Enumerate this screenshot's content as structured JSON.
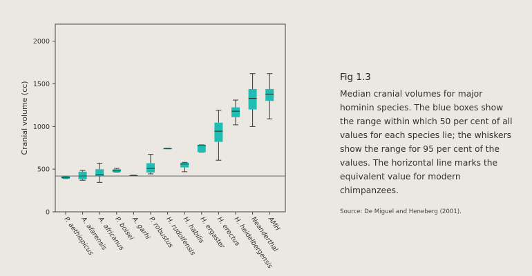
{
  "chart_data": {
    "type": "box",
    "ylabel": "Cranial volume (cc)",
    "ylim": [
      0,
      2200
    ],
    "yticks": [
      0,
      500,
      1000,
      1500,
      2000
    ],
    "reference_line": 420,
    "colors": {
      "box": "#20bdb2",
      "median": "#1f3b38",
      "whisker": "#333333",
      "axis": "#444444"
    },
    "categories": [
      "P. aethiopicus",
      "A. afarensis",
      "A. africanus",
      "P. boisei",
      "A. garhi",
      "P. robustus",
      "H. rudolfensis",
      "H. habilis",
      "H. ergaster",
      "H. erectus",
      "H. heidelbergensis",
      "Neanderthal",
      "AMH"
    ],
    "boxes": [
      {
        "whisker_low": 390,
        "q1": 390,
        "median": 400,
        "q3": 415,
        "whisker_high": 415
      },
      {
        "whisker_low": 370,
        "q1": 380,
        "median": 420,
        "q3": 470,
        "whisker_high": 485
      },
      {
        "whisker_low": 345,
        "q1": 420,
        "median": 435,
        "q3": 500,
        "whisker_high": 570
      },
      {
        "whisker_low": 465,
        "q1": 465,
        "median": 480,
        "q3": 500,
        "whisker_high": 510
      },
      {
        "whisker_low": 425,
        "q1": 425,
        "median": 425,
        "q3": 430,
        "whisker_high": 430
      },
      {
        "whisker_low": 445,
        "q1": 460,
        "median": 510,
        "q3": 570,
        "whisker_high": 675
      },
      {
        "whisker_low": 740,
        "q1": 740,
        "median": 742,
        "q3": 745,
        "whisker_high": 745
      },
      {
        "whisker_low": 470,
        "q1": 520,
        "median": 560,
        "q3": 575,
        "whisker_high": 580
      },
      {
        "whisker_low": 700,
        "q1": 700,
        "median": 775,
        "q3": 785,
        "whisker_high": 785
      },
      {
        "whisker_low": 605,
        "q1": 820,
        "median": 945,
        "q3": 1045,
        "whisker_high": 1190
      },
      {
        "whisker_low": 1020,
        "q1": 1110,
        "median": 1180,
        "q3": 1225,
        "whisker_high": 1310
      },
      {
        "whisker_low": 1000,
        "q1": 1200,
        "median": 1330,
        "q3": 1440,
        "whisker_high": 1620
      },
      {
        "whisker_low": 1090,
        "q1": 1300,
        "median": 1380,
        "q3": 1440,
        "whisker_high": 1620
      }
    ]
  },
  "caption": {
    "fig_label": "Fig 1.3",
    "text": "Median cranial volumes for major hominin species. The blue boxes show the range within which 50 per cent of all values for each species lie; the whiskers show the range for 95 per cent of the values. The horizontal line marks the equivalent value for modern chimpanzees.",
    "source": "Source: De Miguel and Heneberg (2001)."
  }
}
